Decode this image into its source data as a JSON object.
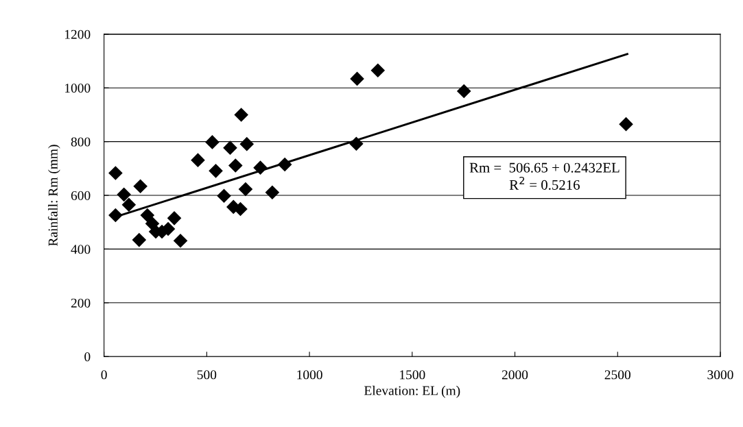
{
  "chart_data": {
    "type": "scatter",
    "xlabel": "Elevation: EL (m)",
    "ylabel": "Rainfall: Rm (mm)",
    "annotations": [
      "Rm =  506.65 + 0.2432EL\nR$^{2}$ = 0.5216"
    ],
    "xlim": [
      0,
      3000
    ],
    "xticks": [
      0,
      500,
      1000,
      1500,
      2000,
      2500,
      3000
    ],
    "ylim": [
      0,
      1200
    ],
    "yticks": [
      0,
      200,
      400,
      600,
      800,
      1000,
      1200
    ],
    "grid": "y",
    "legend": false,
    "series": [
      {
        "marker": "diamond",
        "color": "#000000",
        "x": [
          56,
          56,
          97,
          121,
          177,
          171,
          211,
          235,
          252,
          282,
          312,
          342,
          372,
          457,
          527,
          544,
          584,
          614,
          640,
          630,
          664,
          668,
          695,
          689,
          761,
          819,
          880,
          1232,
          1228,
          1333,
          1752,
          2541
        ],
        "values": [
          683,
          526,
          603,
          565,
          634,
          434,
          526,
          495,
          465,
          465,
          475,
          515,
          431,
          731,
          798,
          691,
          598,
          777,
          711,
          557,
          549,
          900,
          791,
          623,
          703,
          611,
          715,
          1034,
          792,
          1065,
          988,
          865
        ]
      },
      {
        "type": "line",
        "marker": "none",
        "color": "#000000",
        "line_style": "solid",
        "x": [
          85,
          2547
        ],
        "values": [
          527,
          1126
        ]
      }
    ]
  }
}
